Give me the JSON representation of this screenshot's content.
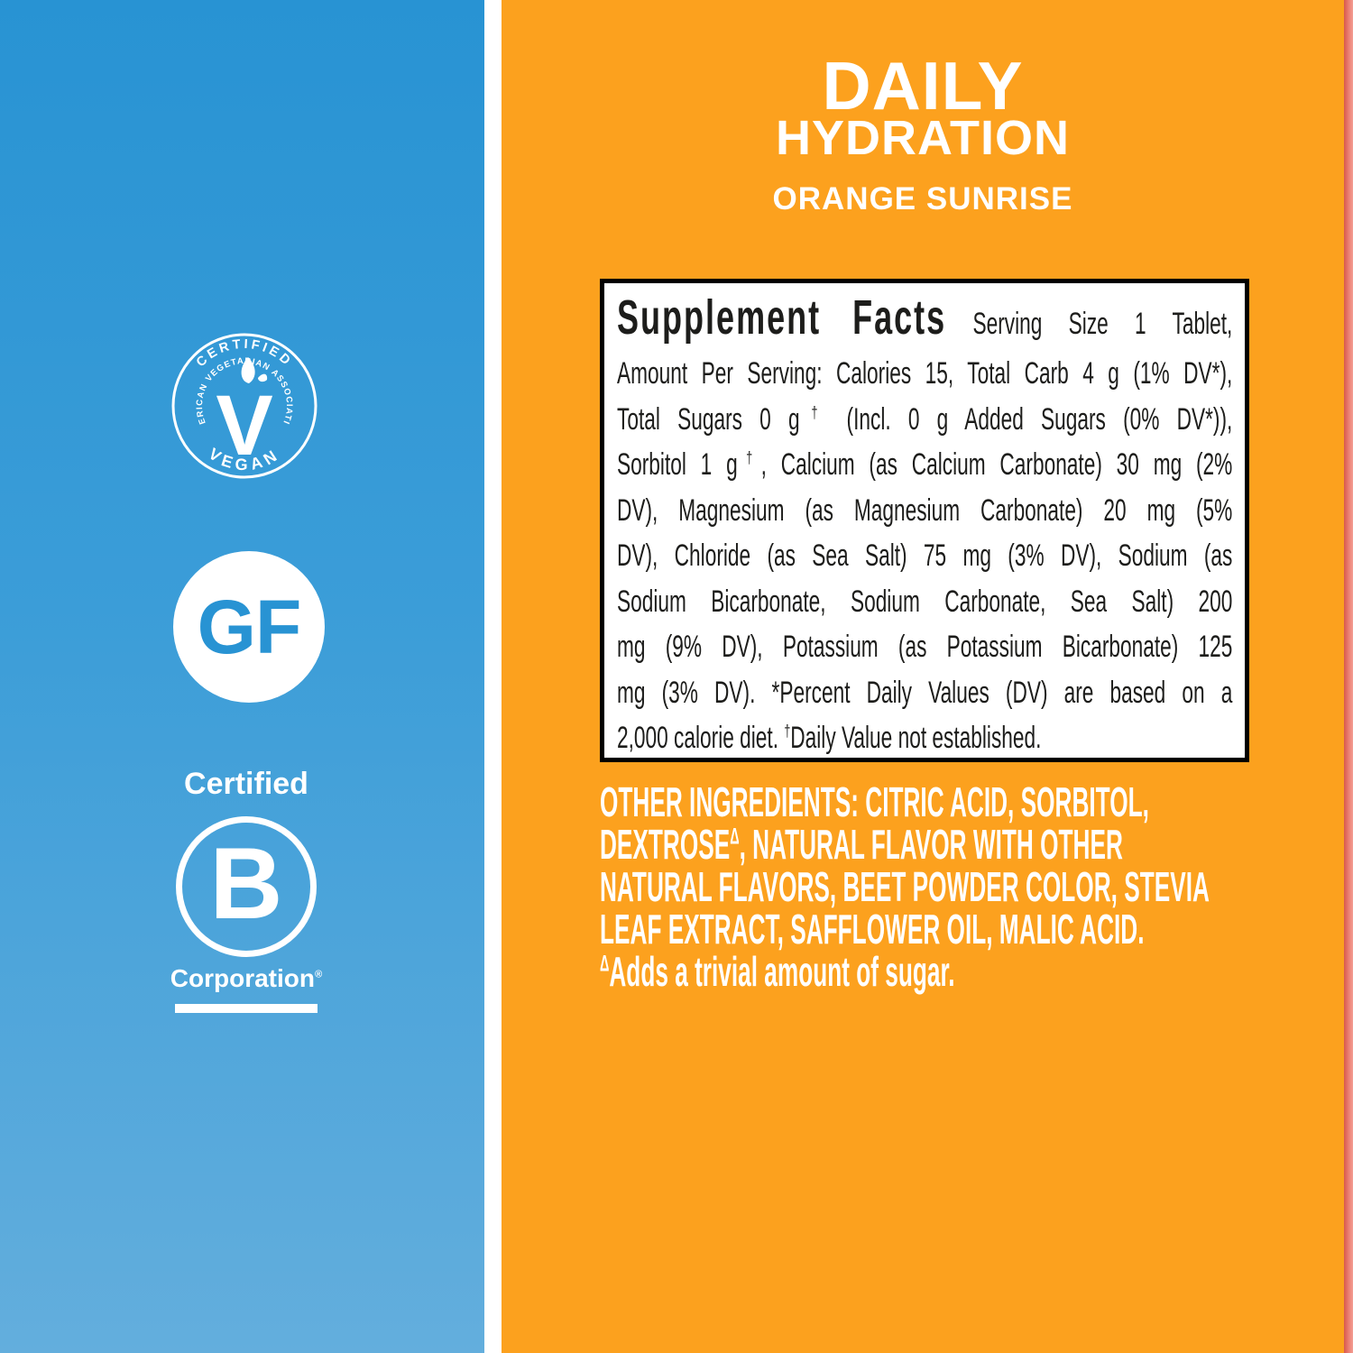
{
  "colors": {
    "left_blue_top": "#2893d3",
    "left_blue_bottom": "#63aedd",
    "panel_orange": "#fca11e",
    "edge_red_strip": "#e06a5a",
    "box_text": "#1d1d1b",
    "badge_white": "#ffffff"
  },
  "badges": {
    "vegan": {
      "arc_top": "CERTIFIED",
      "arc_inner": "AMERICAN VEGETARIAN ASSOCIATION",
      "arc_bottom": "VEGAN",
      "letter": "V"
    },
    "gluten_free": {
      "label": "GF"
    },
    "b_corp": {
      "top": "Certified",
      "letter": "B",
      "bottom": "Corporation",
      "trademark": "®"
    }
  },
  "title": {
    "line1": "DAILY",
    "line2": "HYDRATION",
    "flavor": "ORANGE SUNRISE"
  },
  "supplement_facts": {
    "heading": "Supplement Facts",
    "serving": "Serving Size 1 Tablet,",
    "lines": [
      "Amount Per Serving: Calories 15, Total Carb 4 g (1% DV*),",
      "Total Sugars 0 g† (Incl. 0 g Added Sugars (0% DV*)),",
      "Sorbitol 1 g†, Calcium (as Calcium Carbonate) 30 mg (2%",
      "DV), Magnesium (as Magnesium Carbonate) 20 mg (5%",
      "DV), Chloride (as Sea Salt) 75 mg (3% DV), Sodium (as",
      "Sodium Bicarbonate, Sodium Carbonate, Sea Salt) 200",
      "mg (9% DV), Potassium (as Potassium Bicarbonate) 125",
      "mg (3% DV). *Percent Daily Values (DV) are based on a",
      "2,000 calorie diet. †Daily Value not established."
    ]
  },
  "other_ingredients": {
    "lines": [
      "OTHER INGREDIENTS: CITRIC ACID, SORBITOL,",
      "DEXTROSEΔ, NATURAL FLAVOR WITH OTHER",
      "NATURAL FLAVORS, BEET POWDER COLOR, STEVIA",
      "LEAF EXTRACT,  SAFFLOWER OIL, MALIC ACID.",
      "ΔAdds a trivial amount of sugar."
    ]
  }
}
